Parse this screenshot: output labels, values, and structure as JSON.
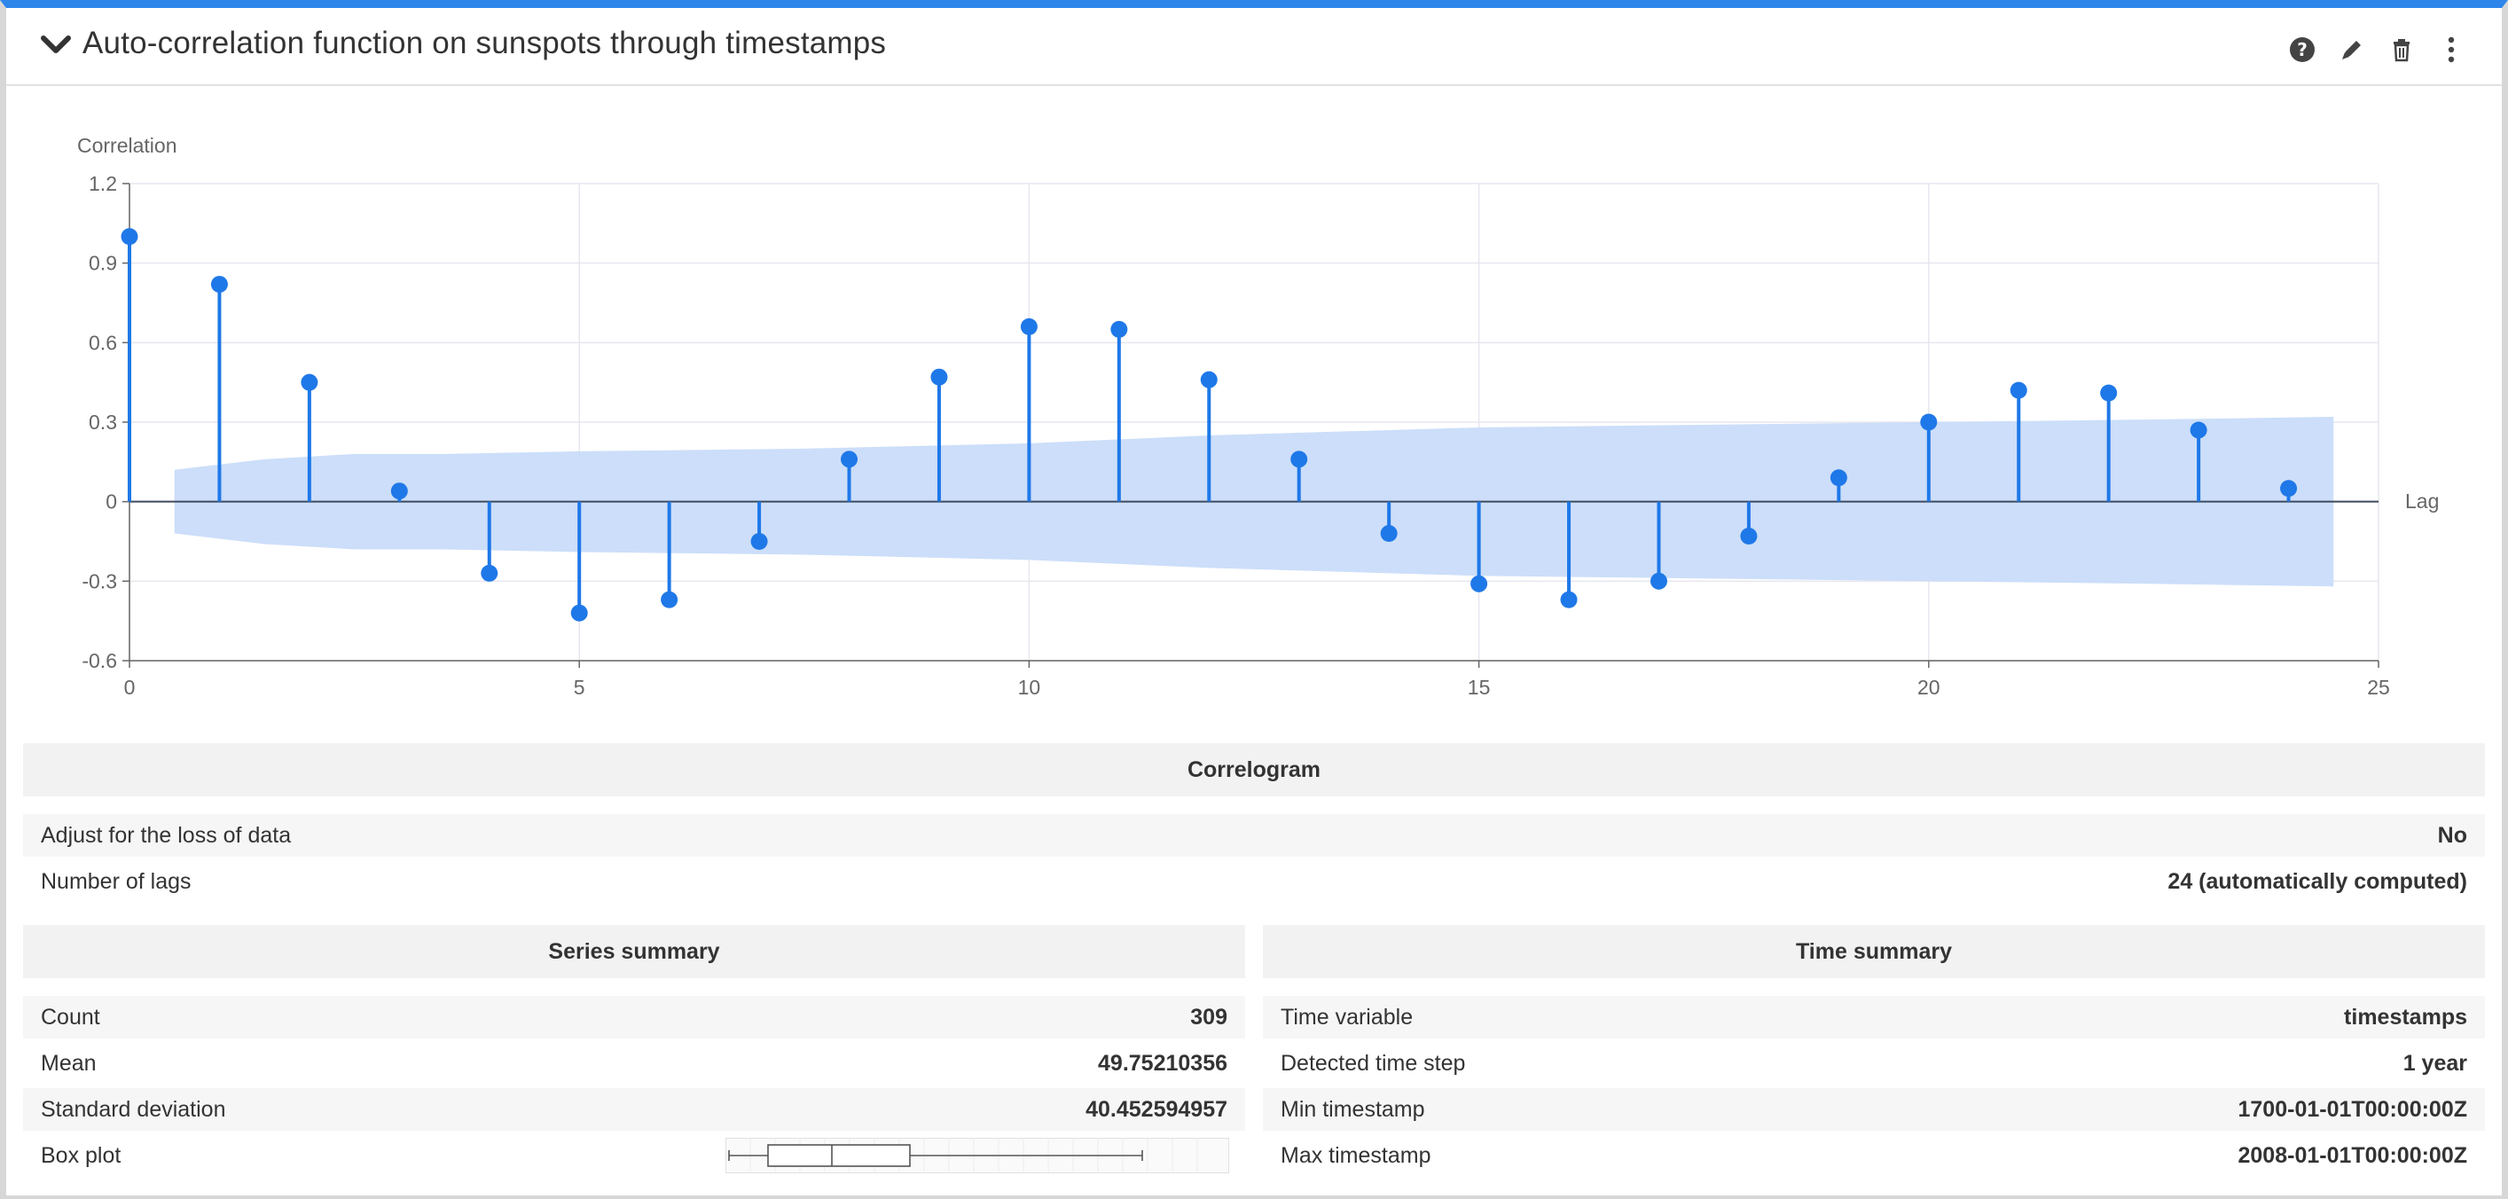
{
  "header": {
    "title": "Auto-correlation function on sunspots through timestamps",
    "icons": [
      "chevron-down-icon",
      "help-icon",
      "edit-icon",
      "delete-icon",
      "more-vertical-icon"
    ]
  },
  "colors": {
    "accent": "#2e86ea",
    "series": "#1f78e8",
    "confidence_band": "#c9dcf9"
  },
  "chart_data": {
    "type": "stem",
    "ylabel": "Correlation",
    "xlabel": "Lag",
    "xlim": [
      0,
      25
    ],
    "ylim": [
      -0.6,
      1.2
    ],
    "xticks": [
      0,
      5,
      10,
      15,
      20,
      25
    ],
    "yticks": [
      1.2,
      0.9,
      0.6,
      0.3,
      0,
      -0.3,
      -0.6
    ],
    "grid": true,
    "lags": [
      0,
      1,
      2,
      3,
      4,
      5,
      6,
      7,
      8,
      9,
      10,
      11,
      12,
      13,
      14,
      15,
      16,
      17,
      18,
      19,
      20,
      21,
      22,
      23,
      24
    ],
    "values": [
      1.0,
      0.82,
      0.45,
      0.04,
      -0.27,
      -0.42,
      -0.37,
      -0.15,
      0.16,
      0.47,
      0.66,
      0.65,
      0.46,
      0.16,
      -0.12,
      -0.31,
      -0.37,
      -0.3,
      -0.13,
      0.09,
      0.3,
      0.42,
      0.41,
      0.27,
      0.05
    ],
    "confidence_band": {
      "lags": [
        0.5,
        1.5,
        2.5,
        3.5,
        5,
        7.5,
        10,
        12,
        15,
        17.5,
        20,
        22.5,
        24.5
      ],
      "upper": [
        0.12,
        0.16,
        0.18,
        0.18,
        0.19,
        0.2,
        0.22,
        0.25,
        0.28,
        0.29,
        0.3,
        0.31,
        0.32
      ],
      "lower": [
        -0.12,
        -0.16,
        -0.18,
        -0.18,
        -0.19,
        -0.2,
        -0.22,
        -0.25,
        -0.28,
        -0.29,
        -0.3,
        -0.31,
        -0.32
      ]
    }
  },
  "correlogram": {
    "title": "Correlogram",
    "rows": [
      {
        "label": "Adjust for the loss of data",
        "value": "No"
      },
      {
        "label": "Number of lags",
        "value": "24 (automatically computed)"
      }
    ]
  },
  "series_summary": {
    "title": "Series summary",
    "rows": [
      {
        "label": "Count",
        "value": "309"
      },
      {
        "label": "Mean",
        "value": "49.75210356"
      },
      {
        "label": "Standard deviation",
        "value": "40.452594957"
      }
    ],
    "boxplot_label": "Box plot"
  },
  "time_summary": {
    "title": "Time summary",
    "rows": [
      {
        "label": "Time variable",
        "value": "timestamps"
      },
      {
        "label": "Detected time step",
        "value": "1 year"
      },
      {
        "label": "Min timestamp",
        "value": "1700-01-01T00:00:00Z"
      },
      {
        "label": "Max timestamp",
        "value": "2008-01-01T00:00:00Z"
      }
    ]
  }
}
